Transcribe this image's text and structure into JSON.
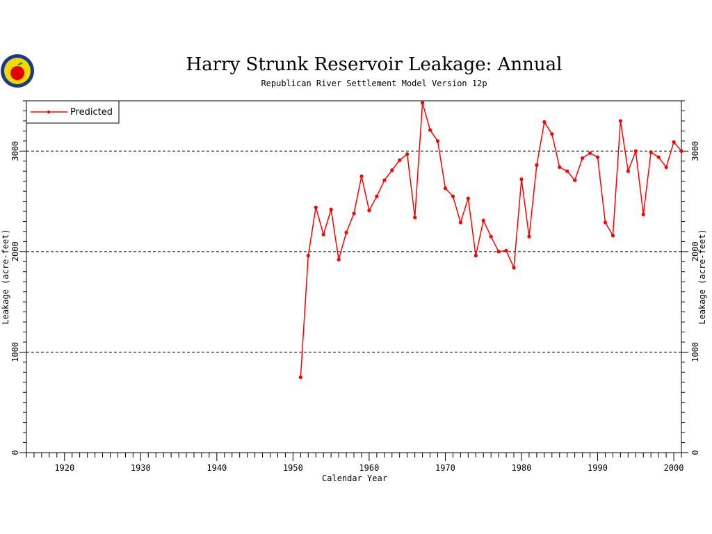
{
  "chart_data": {
    "type": "line",
    "title": "Harry Strunk Reservoir Leakage: Annual",
    "subtitle": "Republican River Settlement Model Version 12p",
    "xlabel": "Calendar Year",
    "ylabel": "Leakage (acre-feet)",
    "xlim": [
      1915,
      2001
    ],
    "ylim": [
      0,
      3500
    ],
    "x_ticks": [
      1920,
      1930,
      1940,
      1950,
      1960,
      1970,
      1980,
      1990,
      2000
    ],
    "y_ticks": [
      0,
      1000,
      2000,
      3000
    ],
    "gridlines_y": [
      1000,
      2000,
      3000
    ],
    "legend_position": "top-left",
    "series_color": "#ff0000",
    "series": [
      {
        "name": "Predicted",
        "x": [
          1951,
          1952,
          1953,
          1954,
          1955,
          1956,
          1957,
          1958,
          1959,
          1960,
          1961,
          1962,
          1963,
          1964,
          1965,
          1966,
          1967,
          1968,
          1969,
          1970,
          1971,
          1972,
          1973,
          1974,
          1975,
          1976,
          1977,
          1978,
          1979,
          1980,
          1981,
          1982,
          1983,
          1984,
          1985,
          1986,
          1987,
          1988,
          1989,
          1990,
          1991,
          1992,
          1993,
          1994,
          1995,
          1996,
          1997,
          1998,
          1999,
          2000,
          2001
        ],
        "values": [
          750,
          1960,
          2440,
          2170,
          2420,
          1920,
          2190,
          2380,
          2750,
          2410,
          2550,
          2710,
          2810,
          2910,
          2970,
          2340,
          3480,
          3210,
          3100,
          2630,
          2550,
          2290,
          2530,
          1960,
          2310,
          2150,
          2000,
          2010,
          1840,
          2720,
          2150,
          2860,
          3290,
          3170,
          2840,
          2800,
          2710,
          2930,
          2980,
          2940,
          2290,
          2160,
          3300,
          2800,
          3000,
          2370,
          2990,
          2940,
          2840,
          3090,
          3000
        ]
      }
    ]
  }
}
